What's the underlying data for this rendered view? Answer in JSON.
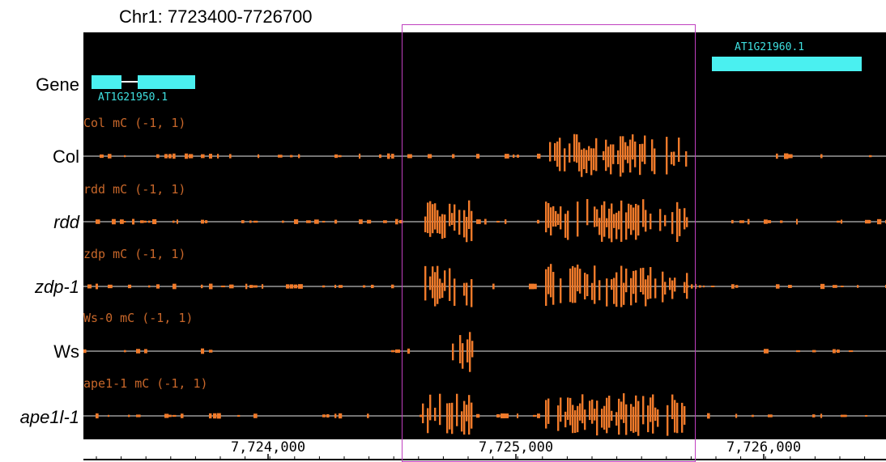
{
  "region_title": "Chr1: 7723400-7726700",
  "rows": {
    "gene": "Gene",
    "col": "Col",
    "rdd": "rdd",
    "zdp": "zdp-1",
    "ws": "Ws",
    "ape": "ape1l-1"
  },
  "tracks": {
    "col": "Col mC (-1, 1)",
    "rdd": "rdd mC (-1, 1)",
    "zdp": "zdp mC (-1, 1)",
    "ws": "Ws-0 mC (-1, 1)",
    "ape": "ape1-1 mC (-1, 1)"
  },
  "genes": {
    "left": "AT1G21950.1",
    "right": "AT1G21960.1"
  },
  "ruler": {
    "t1": "7,724,000",
    "t2": "7,725,000",
    "t3": "7,726,000"
  },
  "colors": {
    "background": "#000000",
    "signal": "#f07a2a",
    "gene": "#4af0f0",
    "highlight": "#c040c0"
  }
}
